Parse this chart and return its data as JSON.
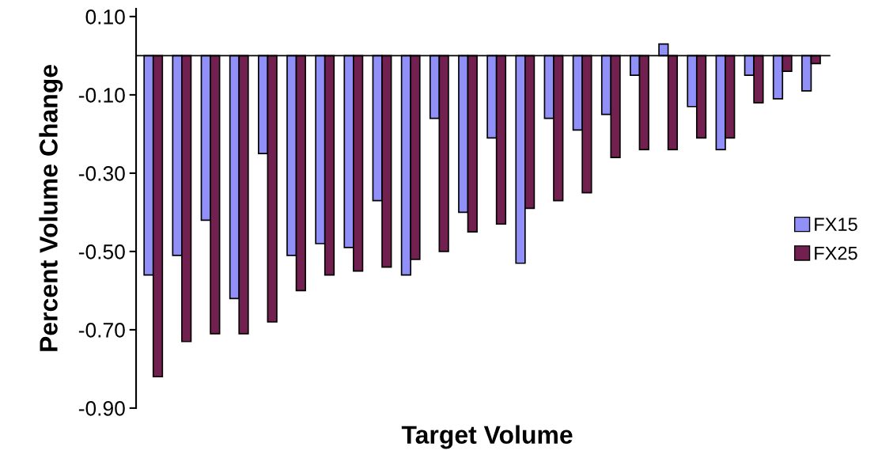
{
  "chart_data": {
    "type": "bar",
    "xlabel": "Target Volume",
    "ylabel": "Percent Volume Change",
    "categories": [
      null,
      null,
      null,
      null,
      null,
      null,
      null,
      null,
      null,
      null,
      null,
      null,
      null,
      null,
      null,
      null,
      null,
      null,
      null,
      null,
      null,
      null,
      null,
      null
    ],
    "series": [
      {
        "name": "FX15",
        "color": "#9090f8",
        "values": [
          -0.56,
          -0.51,
          -0.42,
          -0.62,
          -0.25,
          -0.51,
          -0.48,
          -0.49,
          -0.37,
          -0.56,
          -0.16,
          -0.4,
          -0.21,
          -0.53,
          -0.16,
          -0.19,
          -0.15,
          -0.05,
          0.03,
          -0.13,
          -0.24,
          -0.05,
          -0.11,
          -0.09
        ]
      },
      {
        "name": "FX25",
        "color": "#722050",
        "values": [
          -0.82,
          -0.73,
          -0.71,
          -0.71,
          -0.68,
          -0.6,
          -0.56,
          -0.55,
          -0.54,
          -0.52,
          -0.5,
          -0.45,
          -0.43,
          -0.39,
          -0.37,
          -0.35,
          -0.26,
          -0.24,
          -0.24,
          -0.21,
          -0.21,
          -0.12,
          -0.04,
          -0.02
        ]
      }
    ],
    "ylim": [
      -0.9,
      0.12
    ],
    "yticks": [
      {
        "value": 0.1,
        "label": "0.10"
      },
      {
        "value": -0.1,
        "label": "-0.10"
      },
      {
        "value": -0.3,
        "label": "-0.30"
      },
      {
        "value": -0.5,
        "label": "-0.50"
      },
      {
        "value": -0.7,
        "label": "-0.70"
      },
      {
        "value": -0.9,
        "label": "-0.90"
      }
    ],
    "tick_labels": "y",
    "grid": false,
    "legend": "right"
  }
}
